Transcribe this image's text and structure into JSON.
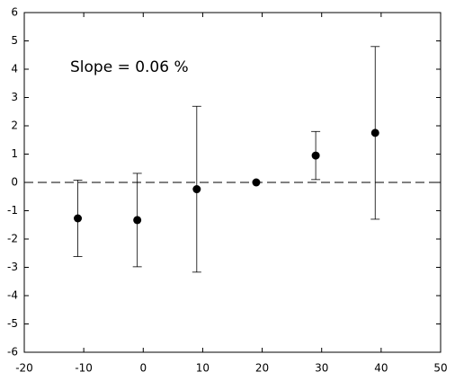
{
  "chart_data": {
    "type": "scatter",
    "annotation": "Slope = 0.06 %",
    "x": [
      -11,
      -1,
      9,
      19,
      29,
      39
    ],
    "values": [
      -1.27,
      -1.33,
      -0.24,
      0,
      0.95,
      1.75
    ],
    "errors": [
      1.35,
      1.65,
      2.93,
      0,
      0.85,
      3.05
    ],
    "color": "#000000",
    "reference_line": 0,
    "xlim": [
      -20,
      50
    ],
    "xticks": [
      -20,
      -10,
      0,
      10,
      20,
      30,
      40,
      50
    ],
    "ylim": [
      -6,
      6
    ],
    "yticks": [
      -6,
      -5,
      -4,
      -3,
      -2,
      -1,
      0,
      1,
      2,
      3,
      4,
      5,
      6
    ]
  }
}
